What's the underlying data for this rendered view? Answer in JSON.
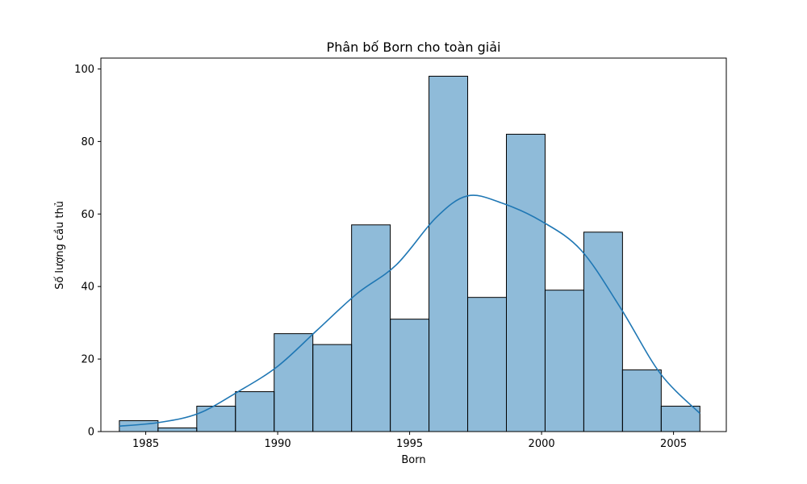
{
  "chart_data": {
    "type": "bar",
    "subtype": "histogram-with-kde",
    "title": "Phân bố Born cho toàn giải",
    "xlabel": "Born",
    "ylabel": "Số lượng cầu thủ",
    "xlim": [
      1983.3,
      2007.0
    ],
    "ylim": [
      0,
      103
    ],
    "xticks": [
      1985,
      1990,
      1995,
      2000,
      2005
    ],
    "yticks": [
      0,
      20,
      40,
      60,
      80,
      100
    ],
    "grid": false,
    "bin_edges": [
      1984.0,
      1985.4667,
      1986.9333,
      1988.4,
      1989.8667,
      1991.3333,
      1992.8,
      1994.2667,
      1995.7333,
      1997.2,
      1998.6667,
      2000.1333,
      2001.6,
      2003.0667,
      2004.5333,
      2006.0
    ],
    "values": [
      3,
      1,
      7,
      11,
      27,
      24,
      57,
      31,
      98,
      37,
      82,
      39,
      55,
      17,
      7
    ],
    "kde": {
      "x": [
        1984.0,
        1985.5,
        1987.0,
        1988.5,
        1990.0,
        1991.5,
        1993.0,
        1994.5,
        1996.0,
        1997.2,
        1998.5,
        2000.0,
        2001.5,
        2003.0,
        2004.5,
        2006.0
      ],
      "y": [
        1.5,
        2.5,
        5,
        11,
        18,
        28,
        38,
        46,
        59,
        65,
        63,
        58,
        50,
        34,
        16,
        5
      ]
    },
    "colors": {
      "bar_fill": "#1f77b4",
      "bar_fill_opacity": 0.5,
      "bar_edge": "#000000",
      "kde_line": "#1f77b4"
    }
  }
}
